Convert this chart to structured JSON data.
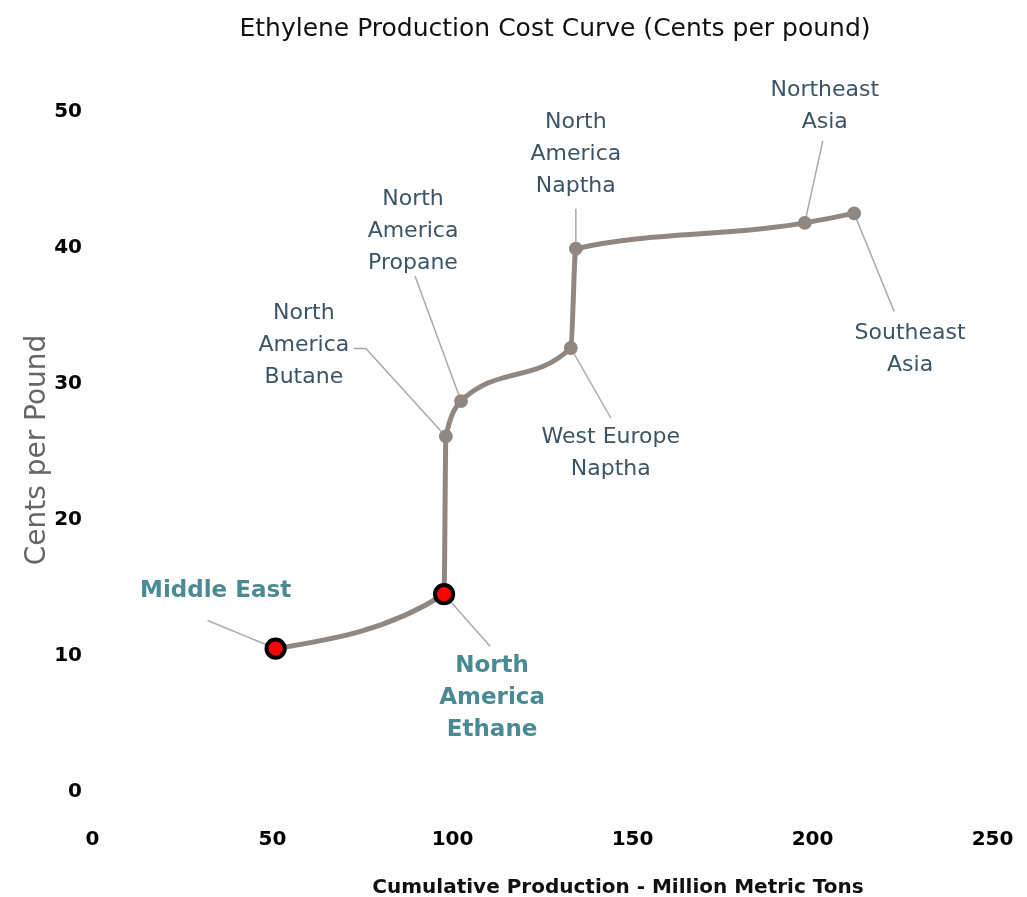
{
  "chart_data": {
    "type": "line",
    "title": "Ethylene Production Cost Curve (Cents per pound)",
    "xlabel": "Cumulative Production - Million Metric Tons",
    "ylabel": "Cents per Pound",
    "xlim": [
      0,
      250
    ],
    "xticks": [
      0,
      50,
      100,
      150,
      200,
      250
    ],
    "ylim": [
      0,
      50
    ],
    "yticks": [
      0,
      10,
      20,
      30,
      40,
      50
    ],
    "grid": false,
    "marker": "circle",
    "line_style": "solid",
    "series": [
      {
        "color": "#8f8780",
        "x": [
          51,
          97.8,
          98.3,
          102.5,
          133,
          134.4,
          198,
          211.7
        ],
        "values": [
          10.4,
          14.4,
          26.0,
          28.6,
          32.5,
          39.8,
          41.7,
          42.4
        ],
        "colors": [
          "#ff0000",
          "#ff0000",
          "#8f8780",
          "#8f8780",
          "#8f8780",
          "#8f8780",
          "#8f8780",
          "#8f8780"
        ]
      }
    ],
    "annotations": [
      {
        "text": "Middle East",
        "x": 51,
        "y": 10.4
      },
      {
        "text": "North America Ethane",
        "x": 97.8,
        "y": 14.4
      },
      {
        "text": "North America Butane",
        "x": 98.3,
        "y": 26.0
      },
      {
        "text": "North America Propane",
        "x": 102.5,
        "y": 28.6
      },
      {
        "text": "West Europe Naptha",
        "x": 133,
        "y": 32.5
      },
      {
        "text": "North America Naptha",
        "x": 134.4,
        "y": 39.8
      },
      {
        "text": "Northeast Asia",
        "x": 198,
        "y": 41.7
      },
      {
        "text": "Southeast Asia",
        "x": 211.7,
        "y": 42.4
      }
    ]
  }
}
